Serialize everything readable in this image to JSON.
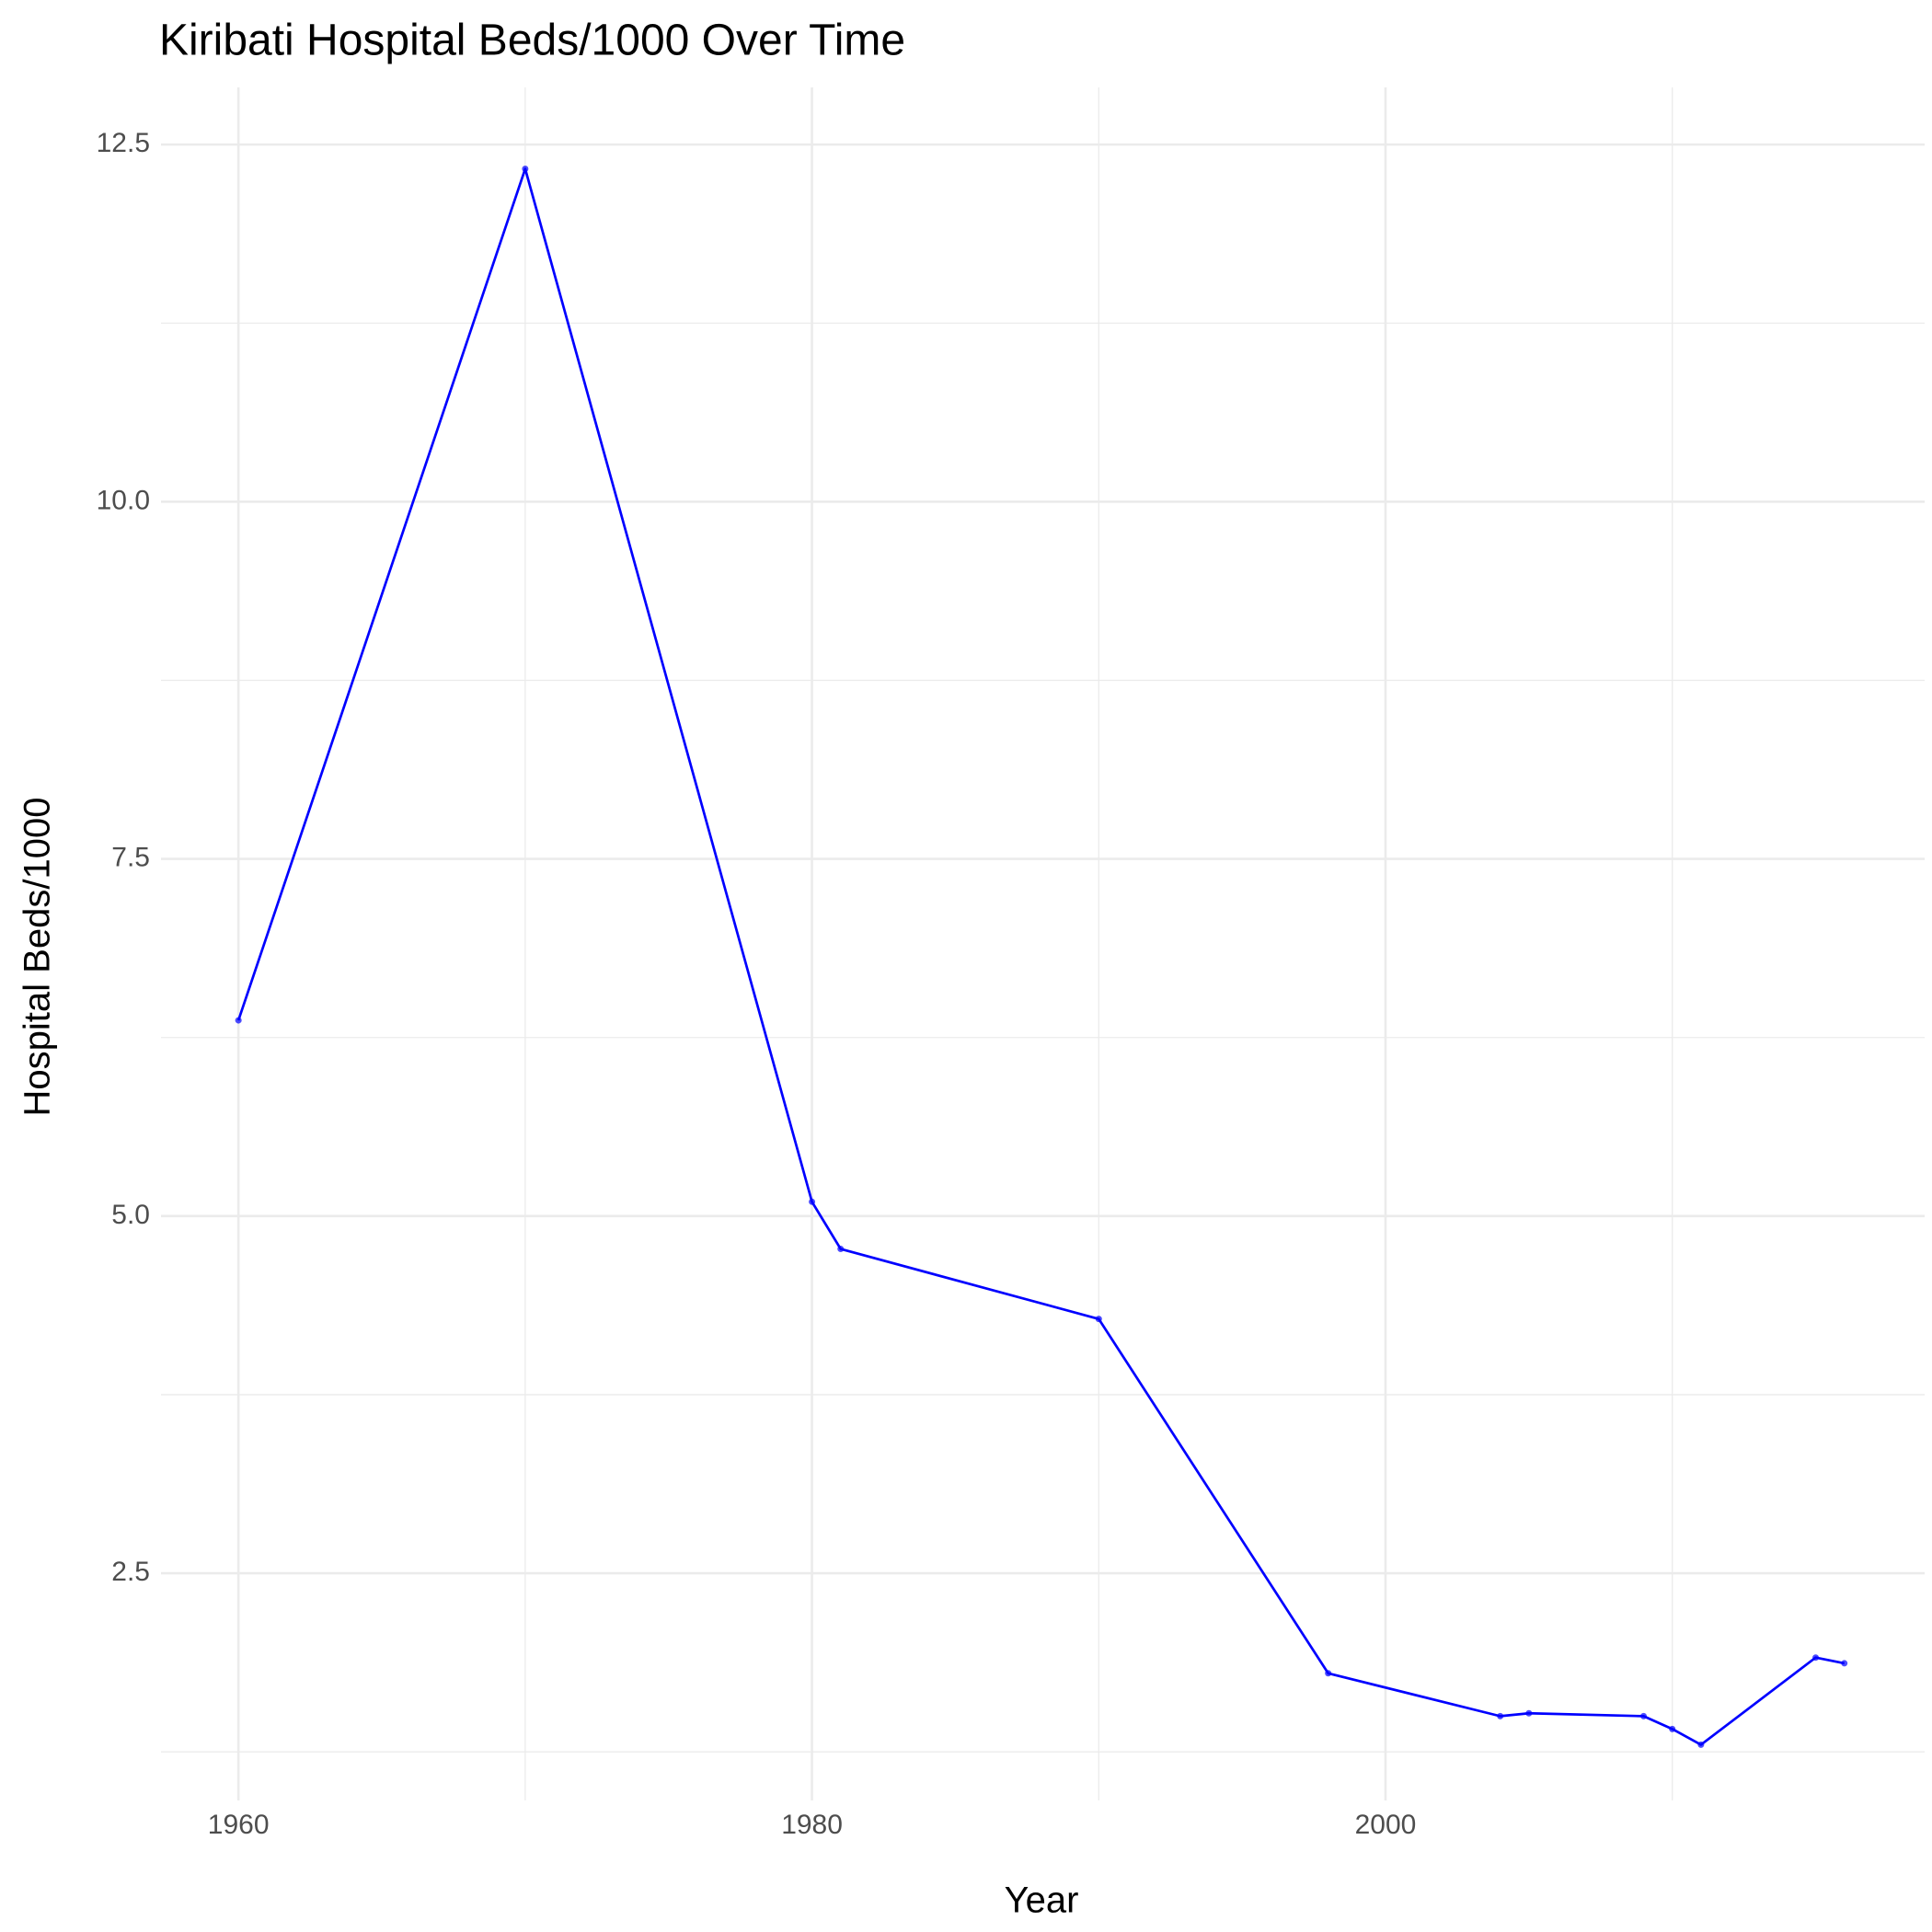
{
  "chart_data": {
    "type": "line",
    "title": "Kiribati Hospital Beds/1000 Over Time",
    "x_label": "Year",
    "y_label": "Hospital Beds/1000",
    "x": [
      1960,
      1970,
      1980,
      1981,
      1990,
      1998,
      2004,
      2005,
      2009,
      2010,
      2011,
      2015,
      2016
    ],
    "series": [
      {
        "name": "Hospital Beds/1000",
        "color": "#0000ff",
        "values": [
          6.37,
          12.33,
          5.1,
          4.77,
          4.28,
          1.8,
          1.5,
          1.52,
          1.5,
          1.41,
          1.3,
          1.91,
          1.87
        ]
      }
    ],
    "xlim": [
      1957.3,
      2018.8
    ],
    "ylim": [
      0.91,
      12.9
    ],
    "xticks": [
      1960,
      1980,
      2000
    ],
    "yticks": [
      2.5,
      {
        "value": 5,
        "label": "5.0"
      },
      7.5,
      {
        "value": 10,
        "label": "10.0"
      },
      12.5
    ],
    "minor_xticks": [
      1970,
      1990,
      2010
    ],
    "minor_yticks": [
      1.25,
      3.75,
      6.25,
      8.75,
      11.25
    ],
    "grid": true
  }
}
